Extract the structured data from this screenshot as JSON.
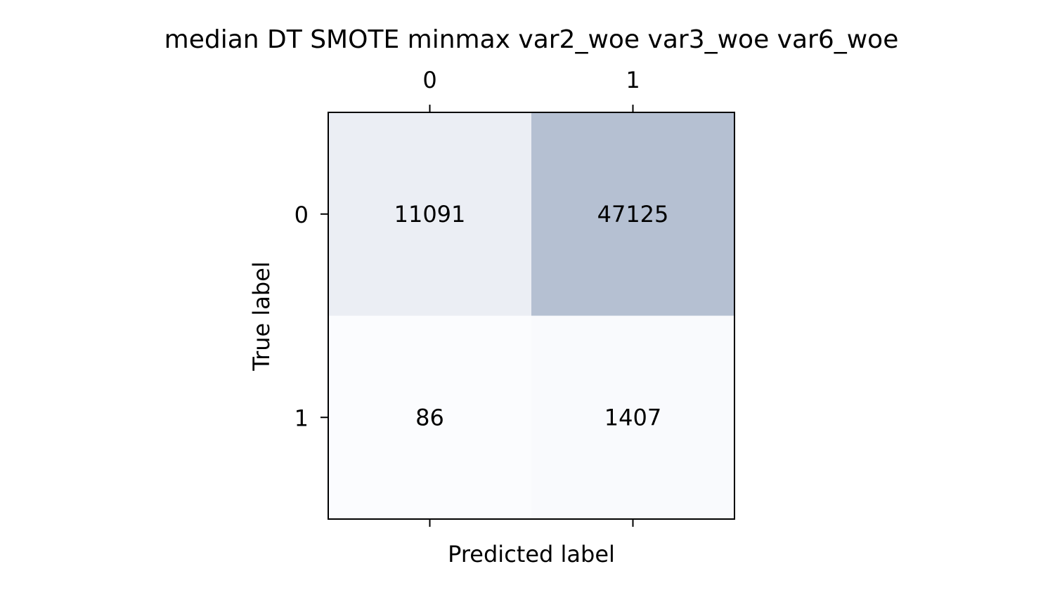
{
  "chart_data": {
    "type": "heatmap",
    "title": "median DT SMOTE minmax var2_woe var3_woe var6_woe",
    "xlabel": "Predicted label",
    "ylabel": "True label",
    "x_categories": [
      "0",
      "1"
    ],
    "y_categories": [
      "0",
      "1"
    ],
    "x_tick_position": "top",
    "values": [
      [
        11091,
        47125
      ],
      [
        86,
        1407
      ]
    ],
    "colormap": {
      "low": "#fbfcfe",
      "high": "#b5c0d2"
    }
  }
}
